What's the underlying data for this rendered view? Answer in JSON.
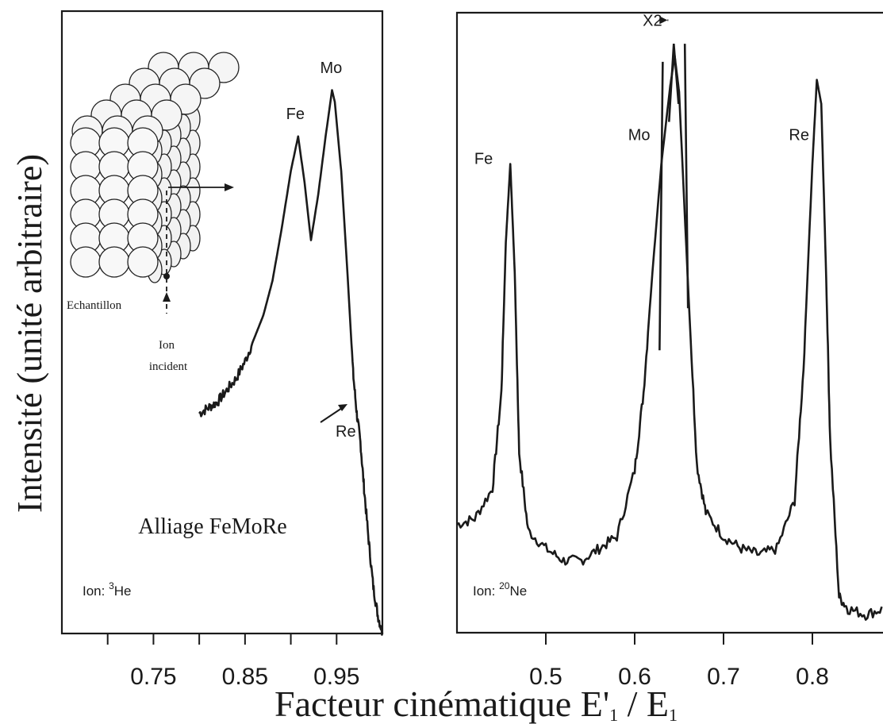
{
  "figure": {
    "ylabel": "Intensité (unité arbitraire)",
    "xlabel_main": "Facteur cinématique E",
    "xlabel_prime": "'",
    "xlabel_sub1": "1",
    "xlabel_slash": " / E",
    "xlabel_sub2": "1"
  },
  "chart_data": [
    {
      "type": "line",
      "panel": "left",
      "title": "Alliage FeMoRe",
      "ion_prefix": "Ion: ",
      "ion_mass": "3",
      "ion_symbol": "He",
      "xlim": [
        0.65,
        1.0
      ],
      "xticks": [
        0.7,
        0.75,
        0.8,
        0.85,
        0.9,
        0.95
      ],
      "xtick_labels": [
        "",
        "0.75",
        "",
        "0.85",
        "",
        "0.95"
      ],
      "series": [
        {
          "x": [
            0.8,
            0.81,
            0.82,
            0.83,
            0.84,
            0.85,
            0.86,
            0.87,
            0.88,
            0.89,
            0.9,
            0.908,
            0.915,
            0.922,
            0.93,
            0.938,
            0.945,
            0.948,
            0.955,
            0.962,
            0.968,
            0.972,
            0.976,
            0.98,
            0.985,
            0.99,
            0.995,
            1.0
          ],
          "y": [
            0.38,
            0.39,
            0.4,
            0.42,
            0.44,
            0.47,
            0.51,
            0.55,
            0.61,
            0.7,
            0.8,
            0.86,
            0.78,
            0.68,
            0.76,
            0.86,
            0.94,
            0.92,
            0.8,
            0.62,
            0.45,
            0.38,
            0.33,
            0.25,
            0.16,
            0.08,
            0.03,
            0.0
          ],
          "color": "#1a1a1a"
        }
      ],
      "annotations": [
        {
          "text": "Fe",
          "x": 0.905,
          "y": 0.89
        },
        {
          "text": "Mo",
          "x": 0.944,
          "y": 0.97
        },
        {
          "text": "Re",
          "x": 0.96,
          "y": 0.34
        }
      ],
      "inset": {
        "sample_label": "Echantillon",
        "ion_label_1": "Ion",
        "ion_label_2": "incident"
      }
    },
    {
      "type": "line",
      "panel": "right",
      "ion_prefix": "Ion: ",
      "ion_mass": "20",
      "ion_symbol": "Ne",
      "xlim": [
        0.4,
        0.9
      ],
      "xticks": [
        0.5,
        0.6,
        0.7,
        0.8
      ],
      "xtick_labels": [
        "0.5",
        "0.6",
        "0.7",
        "0.8"
      ],
      "series": [
        {
          "x": [
            0.4,
            0.42,
            0.44,
            0.45,
            0.455,
            0.46,
            0.465,
            0.47,
            0.48,
            0.5,
            0.52,
            0.54,
            0.56,
            0.58,
            0.6,
            0.61,
            0.62,
            0.63,
            0.64,
            0.645,
            0.65,
            0.66,
            0.67,
            0.68,
            0.7,
            0.72,
            0.74,
            0.76,
            0.78,
            0.79,
            0.8,
            0.805,
            0.81,
            0.815,
            0.82,
            0.83,
            0.84,
            0.86,
            0.88,
            0.9
          ],
          "y": [
            0.18,
            0.19,
            0.24,
            0.4,
            0.65,
            0.78,
            0.6,
            0.3,
            0.17,
            0.14,
            0.12,
            0.12,
            0.14,
            0.16,
            0.27,
            0.4,
            0.6,
            0.78,
            0.91,
            0.96,
            0.9,
            0.58,
            0.28,
            0.2,
            0.16,
            0.14,
            0.13,
            0.14,
            0.22,
            0.44,
            0.78,
            0.92,
            0.88,
            0.62,
            0.32,
            0.06,
            0.04,
            0.03,
            0.04,
            0.05
          ],
          "color": "#1a1a1a"
        }
      ],
      "annotations": [
        {
          "text": "Fe",
          "x": 0.43,
          "y": 0.78
        },
        {
          "text": "Mo",
          "x": 0.605,
          "y": 0.82
        },
        {
          "text": "Re",
          "x": 0.785,
          "y": 0.82
        },
        {
          "text": "X2",
          "x": 0.62,
          "y": 1.01
        }
      ],
      "x2_segment": {
        "x": [
          0.628,
          0.66
        ],
        "y": [
          0.47,
          0.98
        ]
      }
    }
  ]
}
